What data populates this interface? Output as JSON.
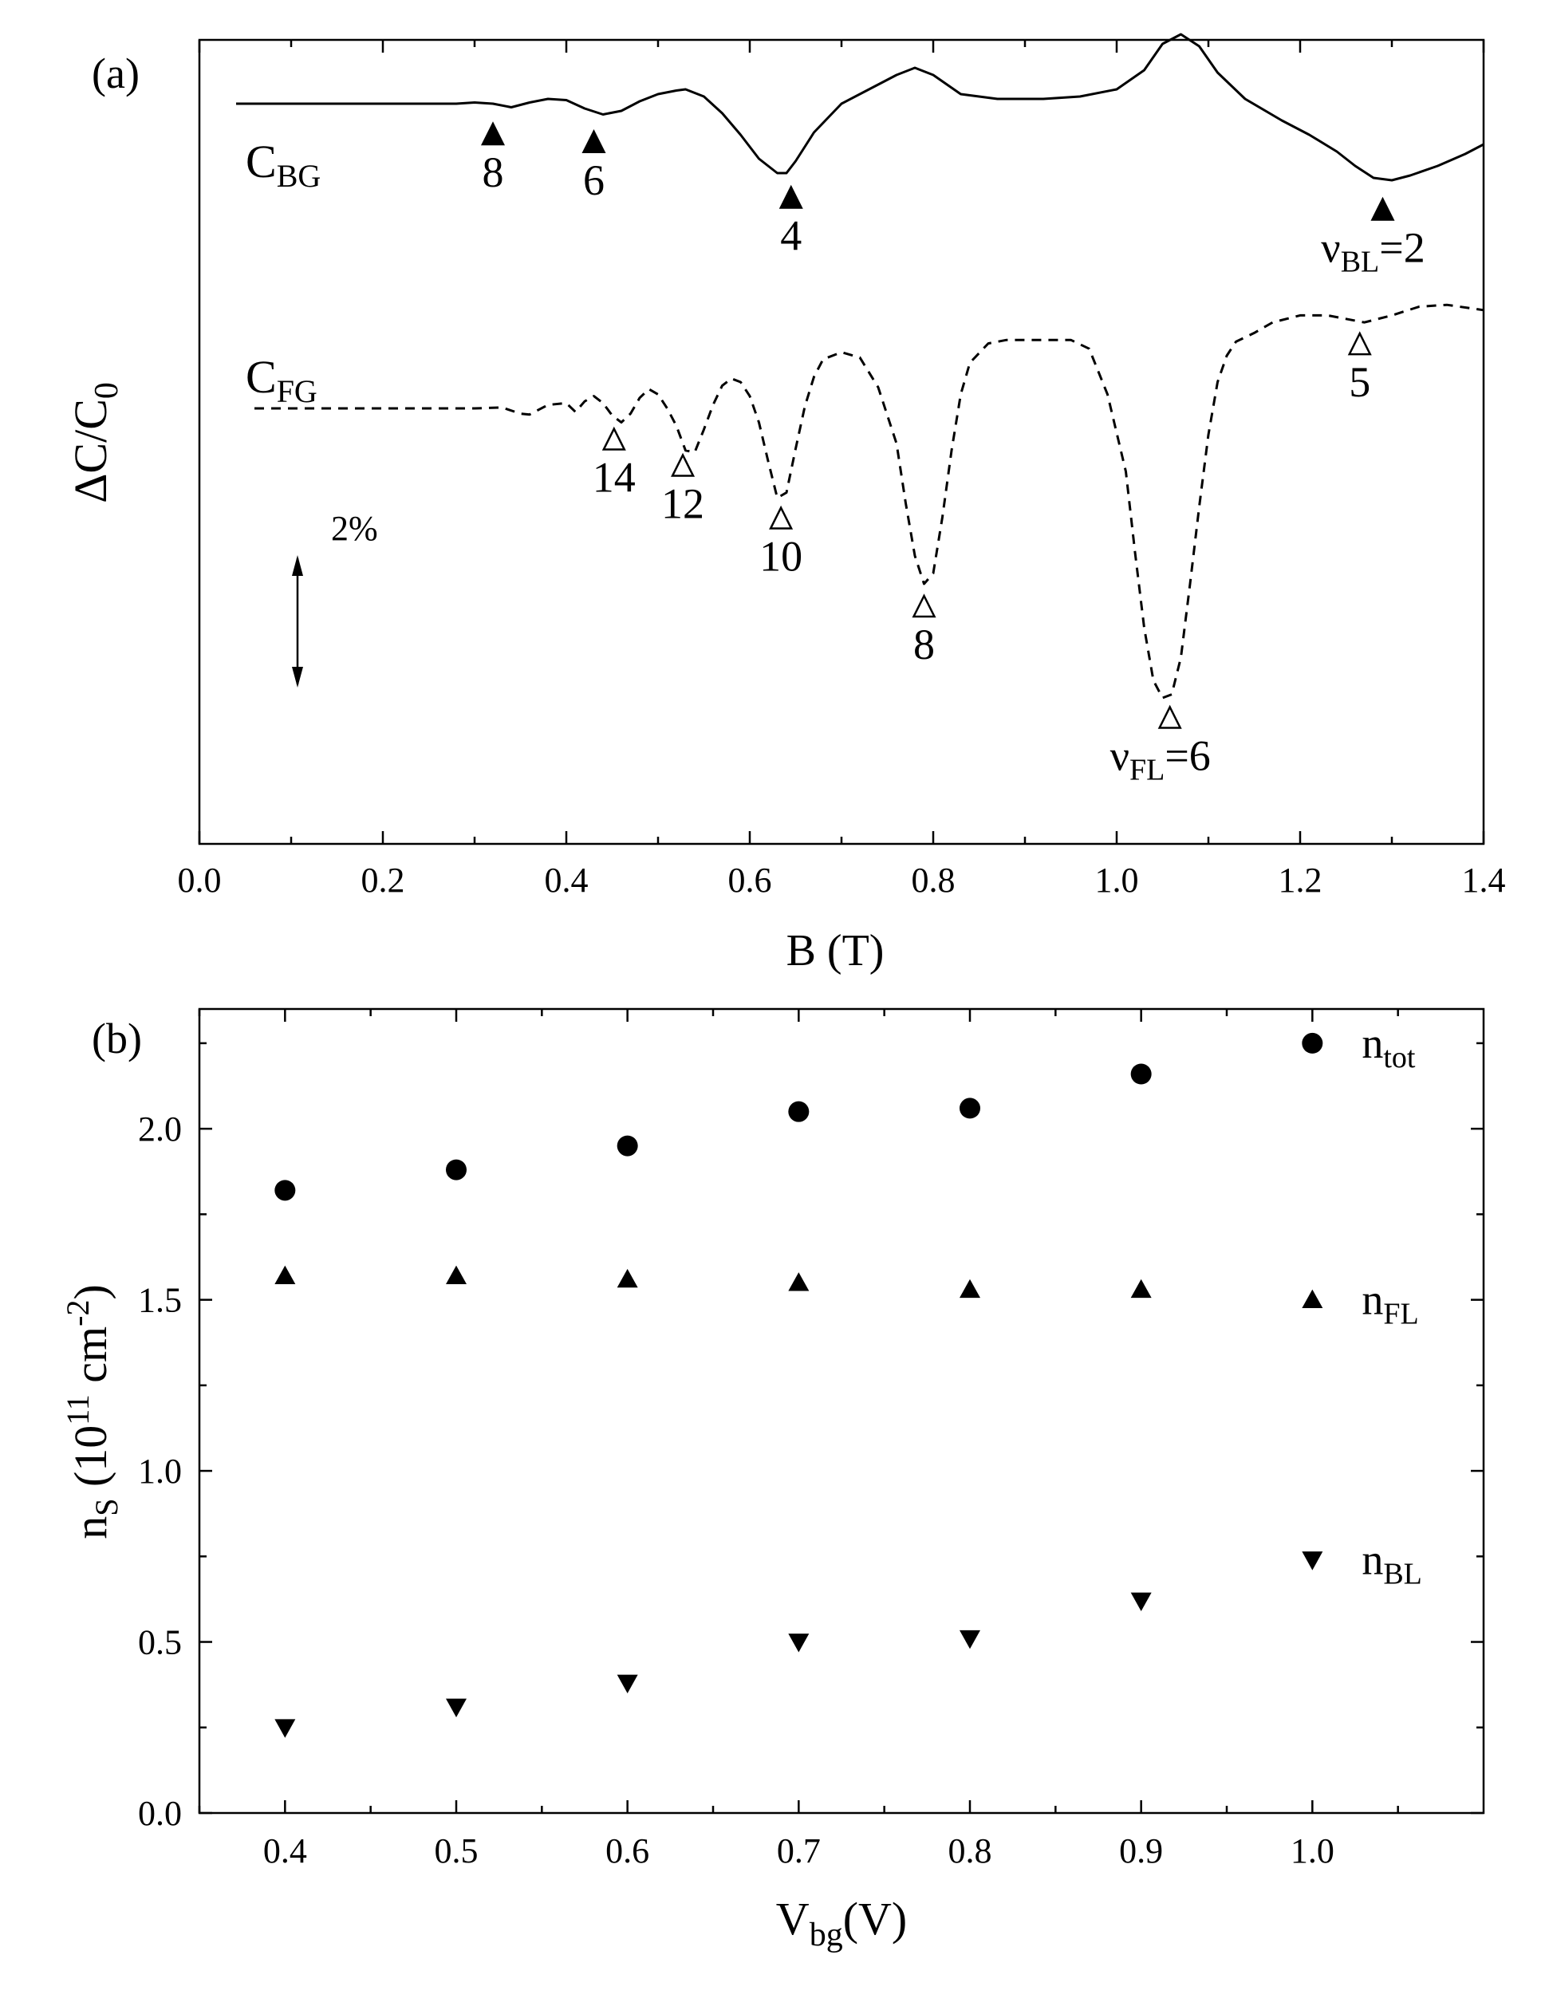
{
  "figure": {
    "panel_a_label": "(a)",
    "panel_b_label": "(b)"
  },
  "chart_data": [
    {
      "type": "line",
      "panel": "(a)",
      "xlabel": "B (T)",
      "ylabel": "ΔC/C0",
      "xlim": [
        0.0,
        1.4
      ],
      "xticks": [
        "0.0",
        "0.2",
        "0.4",
        "0.6",
        "0.8",
        "1.0",
        "1.2",
        "1.4"
      ],
      "y_ticks_shown": false,
      "scale_bar_label": "2%",
      "series": [
        {
          "name": "CBG",
          "label_main": "C",
          "label_sub": "BG",
          "style": "solid",
          "x": [
            0.04,
            0.1,
            0.2,
            0.28,
            0.3,
            0.32,
            0.34,
            0.36,
            0.38,
            0.4,
            0.42,
            0.44,
            0.46,
            0.48,
            0.5,
            0.52,
            0.53,
            0.55,
            0.57,
            0.59,
            0.61,
            0.63,
            0.64,
            0.65,
            0.67,
            0.7,
            0.73,
            0.76,
            0.78,
            0.8,
            0.83,
            0.87,
            0.92,
            0.96,
            1.0,
            1.03,
            1.05,
            1.07,
            1.09,
            1.11,
            1.14,
            1.18,
            1.21,
            1.24,
            1.26,
            1.28,
            1.3,
            1.32,
            1.35,
            1.38,
            1.4
          ],
          "y": [
            0.0,
            0.0,
            0.0,
            0.0,
            0.05,
            0.0,
            -0.15,
            0.05,
            0.2,
            0.15,
            -0.2,
            -0.45,
            -0.3,
            0.1,
            0.4,
            0.55,
            0.6,
            0.3,
            -0.4,
            -1.3,
            -2.3,
            -2.9,
            -2.9,
            -2.4,
            -1.2,
            0.0,
            0.6,
            1.2,
            1.5,
            1.2,
            0.4,
            0.2,
            0.2,
            0.3,
            0.6,
            1.4,
            2.5,
            2.9,
            2.4,
            1.3,
            0.2,
            -0.7,
            -1.3,
            -2.0,
            -2.6,
            -3.1,
            -3.2,
            -3.0,
            -2.6,
            -2.1,
            -1.7
          ]
        },
        {
          "name": "CFG",
          "label_main": "C",
          "label_sub": "FG",
          "style": "dashed",
          "x": [
            0.06,
            0.1,
            0.2,
            0.3,
            0.33,
            0.35,
            0.36,
            0.38,
            0.4,
            0.41,
            0.42,
            0.43,
            0.44,
            0.45,
            0.46,
            0.47,
            0.48,
            0.49,
            0.5,
            0.51,
            0.52,
            0.53,
            0.54,
            0.55,
            0.56,
            0.57,
            0.58,
            0.59,
            0.6,
            0.61,
            0.62,
            0.63,
            0.64,
            0.65,
            0.66,
            0.67,
            0.68,
            0.7,
            0.72,
            0.74,
            0.76,
            0.77,
            0.78,
            0.79,
            0.8,
            0.81,
            0.82,
            0.83,
            0.84,
            0.86,
            0.88,
            0.9,
            0.95,
            0.97,
            0.99,
            1.01,
            1.02,
            1.03,
            1.04,
            1.05,
            1.06,
            1.07,
            1.08,
            1.09,
            1.1,
            1.11,
            1.12,
            1.13,
            1.15,
            1.17,
            1.2,
            1.23,
            1.25,
            1.27,
            1.3,
            1.33,
            1.36,
            1.4
          ],
          "y": [
            0.0,
            0.0,
            0.0,
            0.0,
            0.05,
            -0.3,
            -0.35,
            0.2,
            0.3,
            -0.2,
            0.4,
            0.7,
            0.3,
            -0.4,
            -0.8,
            -0.3,
            0.6,
            1.1,
            0.8,
            0.0,
            -1.0,
            -2.4,
            -2.5,
            -1.2,
            0.2,
            1.3,
            1.7,
            1.5,
            0.7,
            -0.8,
            -3.0,
            -5.1,
            -4.8,
            -2.3,
            0.1,
            1.8,
            2.8,
            3.2,
            2.9,
            1.2,
            -2.0,
            -5.4,
            -8.4,
            -10.0,
            -9.4,
            -6.2,
            -2.4,
            0.8,
            2.6,
            3.7,
            3.9,
            3.9,
            3.9,
            3.4,
            0.8,
            -3.6,
            -8.2,
            -12.5,
            -15.5,
            -16.5,
            -16.3,
            -14.2,
            -10.0,
            -5.6,
            -1.5,
            1.5,
            3.0,
            3.8,
            4.3,
            4.9,
            5.3,
            5.3,
            5.1,
            4.9,
            5.3,
            5.8,
            5.9,
            5.6
          ]
        }
      ],
      "markers": [
        {
          "series": "CBG",
          "filled": true,
          "x": 0.32,
          "label": "8"
        },
        {
          "series": "CBG",
          "filled": true,
          "x": 0.43,
          "label": "6"
        },
        {
          "series": "CBG",
          "filled": true,
          "x": 0.645,
          "label": "4"
        },
        {
          "series": "CBG",
          "filled": true,
          "x": 1.29,
          "label": "=2",
          "label_prefix": "ν",
          "label_sub": "BL"
        },
        {
          "series": "CFG",
          "filled": false,
          "x": 0.452,
          "label": "14"
        },
        {
          "series": "CFG",
          "filled": false,
          "x": 0.527,
          "label": "12"
        },
        {
          "series": "CFG",
          "filled": false,
          "x": 0.634,
          "label": "10"
        },
        {
          "series": "CFG",
          "filled": false,
          "x": 0.79,
          "label": "8"
        },
        {
          "series": "CFG",
          "filled": false,
          "x": 1.058,
          "label": "=6",
          "label_prefix": "ν",
          "label_sub": "FL"
        },
        {
          "series": "CFG",
          "filled": false,
          "x": 1.265,
          "label": "5"
        }
      ]
    },
    {
      "type": "scatter",
      "panel": "(b)",
      "xlabel_main": "V",
      "xlabel_sub": "bg",
      "xlabel_rest": "(V)",
      "ylabel_main": "n",
      "ylabel_sub": "S",
      "ylabel_unit_open": " (10",
      "ylabel_sup1": "11",
      "ylabel_unit_mid": " cm",
      "ylabel_sup2": "-2",
      "ylabel_close": ")",
      "xlim": [
        0.35,
        1.1
      ],
      "ylim": [
        0.0,
        2.35
      ],
      "xticks": [
        "0.4",
        "0.5",
        "0.6",
        "0.7",
        "0.8",
        "0.9",
        "1.0"
      ],
      "yticks": [
        "0.0",
        "0.5",
        "1.0",
        "1.5",
        "2.0"
      ],
      "x": [
        0.4,
        0.5,
        0.6,
        0.7,
        0.8,
        0.9
      ],
      "series": [
        {
          "name": "ntot",
          "label_main": "n",
          "label_sub": "tot",
          "marker": "circle",
          "values": [
            1.82,
            1.88,
            1.95,
            2.05,
            2.06,
            2.16
          ]
        },
        {
          "name": "nFL",
          "label_main": "n",
          "label_sub": "FL",
          "marker": "triangle-up",
          "values": [
            1.57,
            1.57,
            1.56,
            1.55,
            1.53,
            1.53
          ]
        },
        {
          "name": "nBL",
          "label_main": "n",
          "label_sub": "BL",
          "marker": "triangle-down",
          "values": [
            0.25,
            0.31,
            0.38,
            0.5,
            0.51,
            0.62
          ]
        }
      ],
      "legend": "right"
    }
  ]
}
